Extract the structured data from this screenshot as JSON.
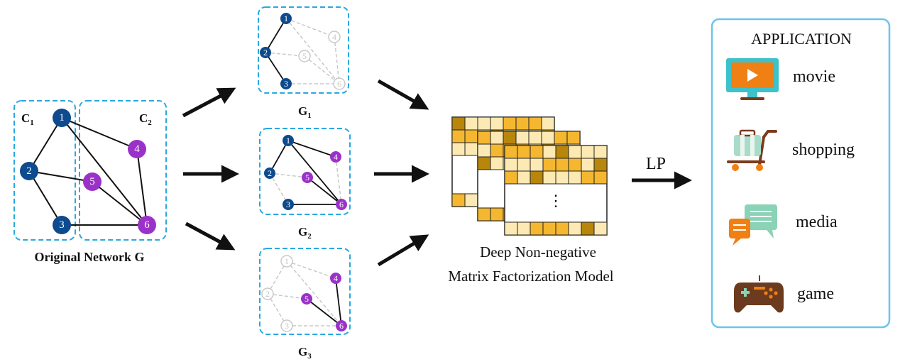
{
  "original": {
    "caption": "Original Network G",
    "community1": {
      "base": "C",
      "sub": "1"
    },
    "community2": {
      "base": "C",
      "sub": "2"
    },
    "nodes": [
      "1",
      "2",
      "3",
      "4",
      "5",
      "6"
    ]
  },
  "subgraphs": [
    {
      "base": "G",
      "sub": "1"
    },
    {
      "base": "G",
      "sub": "2"
    },
    {
      "base": "G",
      "sub": "3"
    }
  ],
  "model": {
    "line1": "Deep Non-negative",
    "line2": "Matrix Factorization Model",
    "ellipsis": "⋮"
  },
  "edge_label": "LP",
  "application": {
    "title": "APPLICATION",
    "items": [
      {
        "label": "movie",
        "icon": "monitor-play-icon"
      },
      {
        "label": "shopping",
        "icon": "luggage-cart-icon"
      },
      {
        "label": "media",
        "icon": "chat-bubbles-icon"
      },
      {
        "label": "game",
        "icon": "gamepad-icon"
      }
    ]
  },
  "colors": {
    "community1": "#0d4a8e",
    "community2": "#9b32c8",
    "dashed_box": "#29a8e0",
    "app_border": "#6cc4ec",
    "ghost": "#c9c9c9",
    "matrix_light": "#fde9b3",
    "matrix_mid": "#f4b72f",
    "matrix_dark": "#b8860b"
  }
}
